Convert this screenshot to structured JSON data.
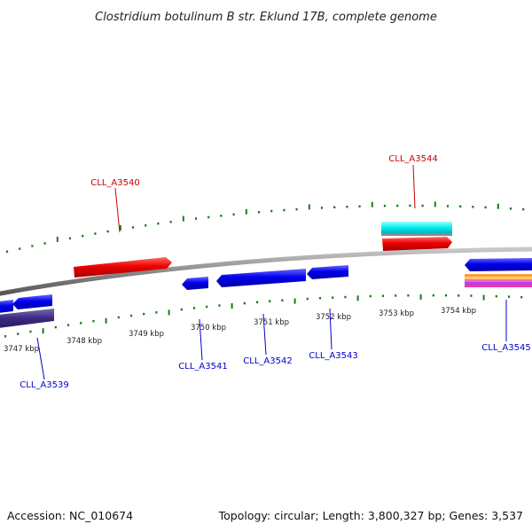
{
  "title": "Clostridium botulinum B str. Eklund 17B, complete genome",
  "footer": {
    "accession": "Accession: NC_010674",
    "summary": "Topology: circular; Length: 3,800,327 bp; Genes: 3,537"
  },
  "colors": {
    "forward_label": "#cc0000",
    "reverse_label": "#0000cc",
    "tick": "#1a7a1a",
    "backbone": "#8a8a8a"
  },
  "scale_labels": [
    "3747 kbp",
    "3748 kbp",
    "3749 kbp",
    "3750 kbp",
    "3751 kbp",
    "3752 kbp",
    "3753 kbp",
    "3754 kbp"
  ],
  "gene_labels": {
    "forward": [
      "CLL_A3540",
      "CLL_A3544"
    ],
    "reverse": [
      "CLL_A3539",
      "CLL_A3541",
      "CLL_A3542",
      "CLL_A3543",
      "CLL_A3545"
    ]
  }
}
